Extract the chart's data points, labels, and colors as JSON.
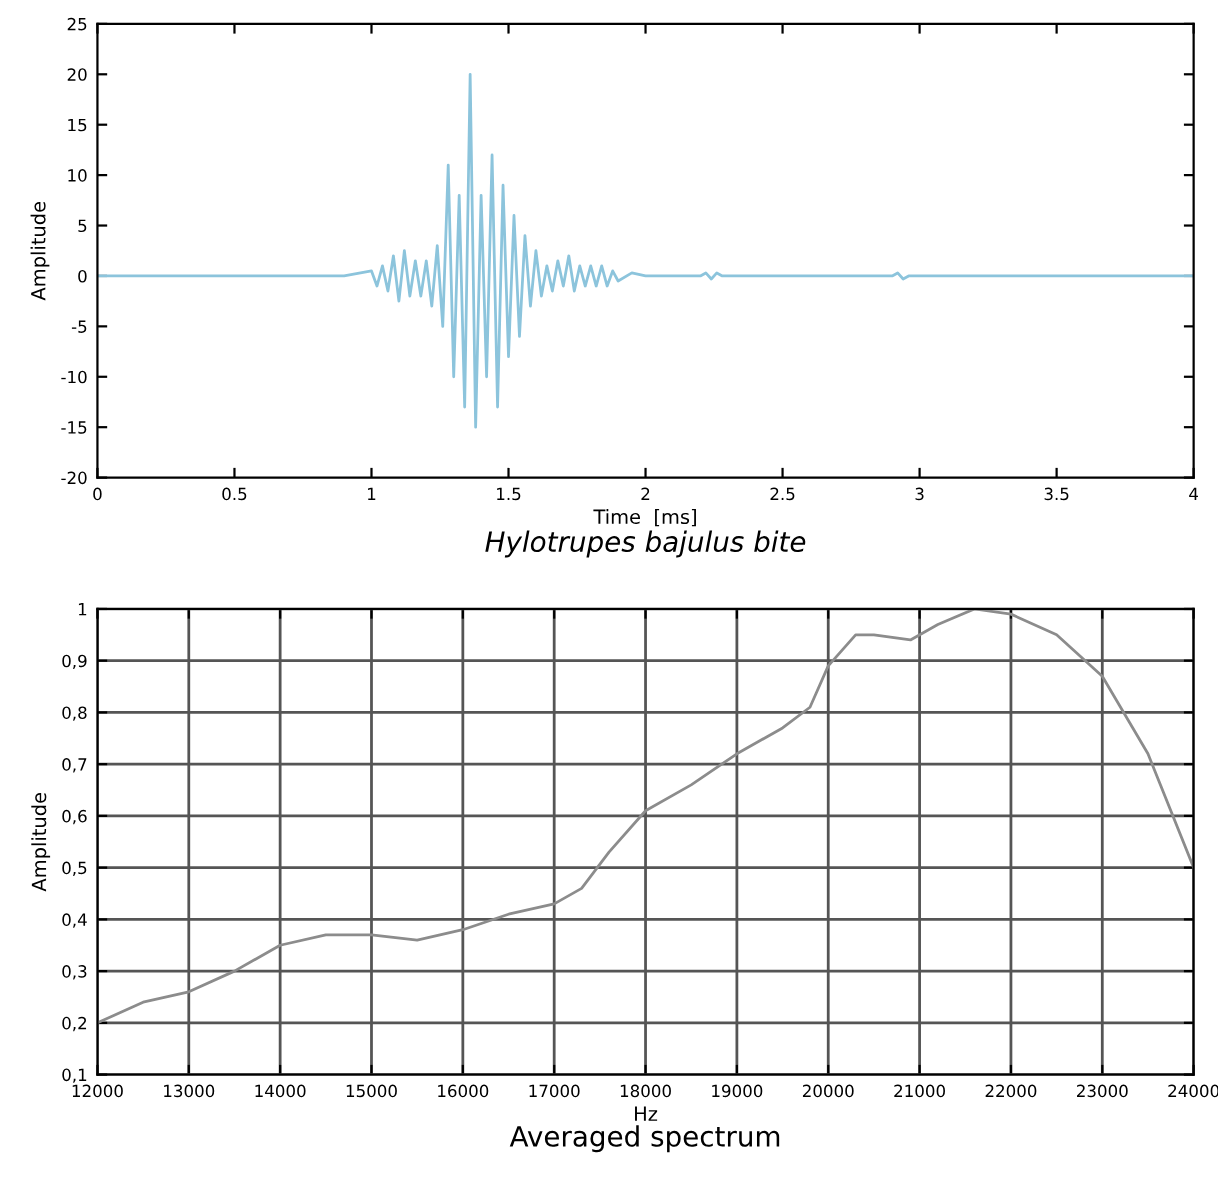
{
  "chart_data": [
    {
      "type": "line",
      "title": "Hylotrupes bajulus bite",
      "xlabel": "Time  [ms]",
      "ylabel": "Amplitude",
      "xlim": [
        0,
        4
      ],
      "xticks": [
        0,
        0.5,
        1,
        1.5,
        2,
        2.5,
        3,
        3.5,
        4
      ],
      "ylim": [
        -20,
        25
      ],
      "yticks": [
        -20,
        -15,
        -10,
        -5,
        0,
        5,
        10,
        15,
        20,
        25
      ],
      "grid": false,
      "series": [
        {
          "color": "#8cc4dc",
          "x": [
            0,
            0.9,
            1.0,
            1.02,
            1.04,
            1.06,
            1.08,
            1.1,
            1.12,
            1.14,
            1.16,
            1.18,
            1.2,
            1.22,
            1.24,
            1.26,
            1.28,
            1.3,
            1.32,
            1.34,
            1.36,
            1.38,
            1.4,
            1.42,
            1.44,
            1.46,
            1.48,
            1.5,
            1.52,
            1.54,
            1.56,
            1.58,
            1.6,
            1.62,
            1.64,
            1.66,
            1.68,
            1.7,
            1.72,
            1.74,
            1.76,
            1.78,
            1.8,
            1.82,
            1.84,
            1.86,
            1.88,
            1.9,
            1.95,
            2.0,
            2.2,
            2.22,
            2.24,
            2.26,
            2.28,
            2.9,
            2.92,
            2.94,
            2.96,
            4
          ],
          "values": [
            0,
            0,
            0.5,
            -1,
            1,
            -1.5,
            2,
            -2.5,
            2.5,
            -2,
            1.5,
            -2,
            1.5,
            -3,
            3,
            -5,
            11,
            -10,
            8,
            -13,
            20,
            -15,
            8,
            -10,
            12,
            -13,
            9,
            -8,
            6,
            -6,
            4,
            -3,
            2.5,
            -2,
            1,
            -1.5,
            1.5,
            -1,
            2,
            -1.5,
            1,
            -1,
            1,
            -1,
            1,
            -1,
            0.5,
            -0.5,
            0.3,
            0,
            0,
            0.3,
            -0.3,
            0.3,
            0,
            0,
            0.3,
            -0.3,
            0,
            0
          ]
        }
      ]
    },
    {
      "type": "line",
      "title": "Averaged spectrum",
      "xlabel": "Hz",
      "ylabel": "Amplitude",
      "xlim": [
        12000,
        24000
      ],
      "xticks": [
        12000,
        13000,
        14000,
        15000,
        16000,
        17000,
        18000,
        19000,
        20000,
        21000,
        22000,
        23000,
        24000
      ],
      "ylim": [
        0.1,
        1
      ],
      "yticks": [
        {
          "value": 0.1,
          "label": "0,1"
        },
        {
          "value": 0.2,
          "label": "0,2"
        },
        {
          "value": 0.3,
          "label": "0,3"
        },
        {
          "value": 0.4,
          "label": "0,4"
        },
        {
          "value": 0.5,
          "label": "0,5"
        },
        {
          "value": 0.6,
          "label": "0,6"
        },
        {
          "value": 0.7,
          "label": "0,7"
        },
        {
          "value": 0.8,
          "label": "0,8"
        },
        {
          "value": 0.9,
          "label": "0,9"
        },
        1
      ],
      "grid": true,
      "series": [
        {
          "color": "#8c8c8c",
          "x": [
            12000,
            12500,
            13000,
            13500,
            14000,
            14500,
            15000,
            15500,
            16000,
            16500,
            17000,
            17300,
            17600,
            18000,
            18500,
            19000,
            19500,
            19800,
            20000,
            20300,
            20500,
            20900,
            21200,
            21600,
            22000,
            22500,
            23000,
            23500,
            24000
          ],
          "values": [
            0.2,
            0.24,
            0.26,
            0.3,
            0.35,
            0.37,
            0.37,
            0.36,
            0.38,
            0.41,
            0.43,
            0.46,
            0.53,
            0.61,
            0.66,
            0.72,
            0.77,
            0.81,
            0.89,
            0.95,
            0.95,
            0.94,
            0.97,
            1.0,
            0.99,
            0.95,
            0.87,
            0.72,
            0.5
          ]
        }
      ]
    }
  ]
}
